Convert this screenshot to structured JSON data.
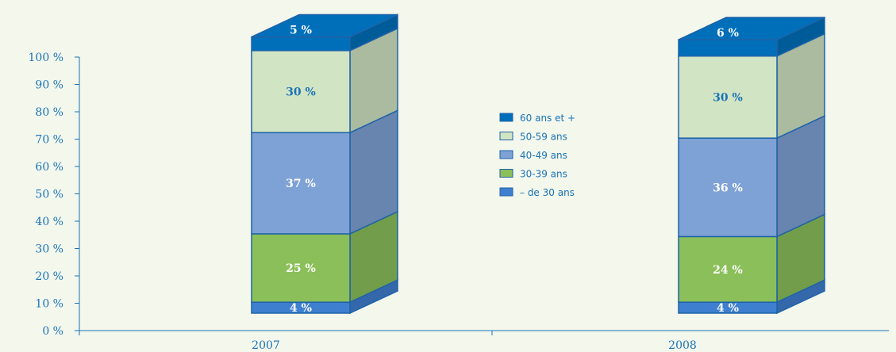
{
  "chart_data": {
    "type": "bar",
    "stacked": true,
    "style": "3d",
    "categories": [
      "2007",
      "2008"
    ],
    "series": [
      {
        "name": "– de 30 ans",
        "values": [
          4,
          4
        ],
        "labels": [
          "4 %",
          "4 %"
        ],
        "color": "#3f7fcf",
        "label_color": "#ffffff"
      },
      {
        "name": "30-39 ans",
        "values": [
          25,
          24
        ],
        "labels": [
          "25 %",
          "24 %"
        ],
        "color": "#8bbf5a",
        "label_color": "#ffffff"
      },
      {
        "name": "40-49 ans",
        "values": [
          37,
          36
        ],
        "labels": [
          "37 %",
          "36 %"
        ],
        "color": "#7ea2d6",
        "label_color": "#ffffff"
      },
      {
        "name": "50-59 ans",
        "values": [
          30,
          30
        ],
        "labels": [
          "30 %",
          "30 %"
        ],
        "color": "#d1e4c3",
        "label_color": "#1a73b8"
      },
      {
        "name": "60 ans et +",
        "values": [
          5,
          6
        ],
        "labels": [
          "5 %",
          "6 %"
        ],
        "color": "#006fba",
        "label_color": "#ffffff"
      }
    ],
    "legend_order": [
      "60 ans et +",
      "50-59 ans",
      "40-49 ans",
      "30-39 ans",
      "– de 30 ans"
    ],
    "legend_position": "center",
    "y_ticks": [
      "0 %",
      "10 %",
      "20 %",
      "30 %",
      "40 %",
      "50 %",
      "60 %",
      "70 %",
      "80 %",
      "90 %",
      "100 %"
    ],
    "ylim": [
      0,
      100
    ],
    "grid": false,
    "accent": "#1a73b8",
    "outline_color": "#1f63a8",
    "background": "#f3f7ec"
  }
}
